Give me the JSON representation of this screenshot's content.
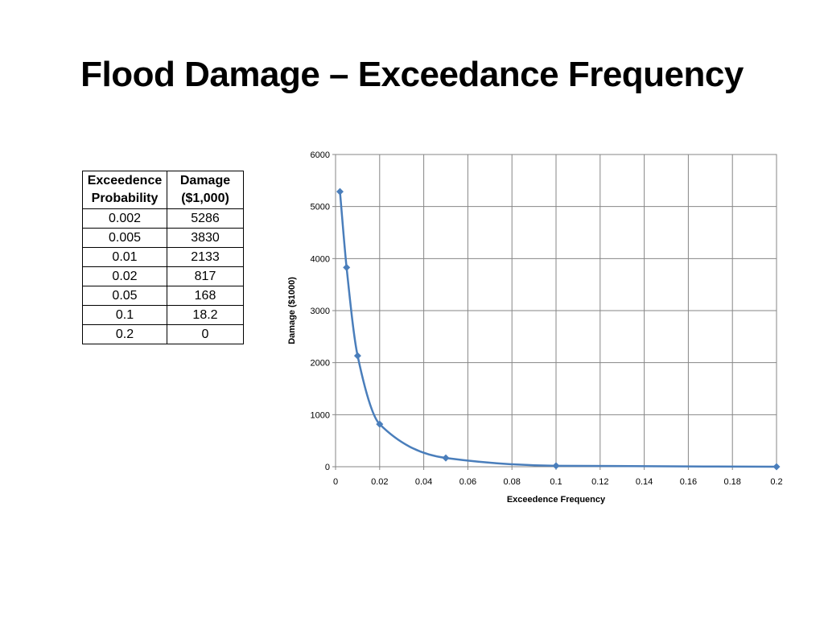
{
  "title": "Flood Damage – Exceedance Frequency",
  "table": {
    "headers": [
      "Exceedence Probability",
      "Damage ($1,000)"
    ],
    "rows": [
      [
        "0.002",
        "5286"
      ],
      [
        "0.005",
        "3830"
      ],
      [
        "0.01",
        "2133"
      ],
      [
        "0.02",
        "817"
      ],
      [
        "0.05",
        "168"
      ],
      [
        "0.1",
        "18.2"
      ],
      [
        "0.2",
        "0"
      ]
    ]
  },
  "chart_data": {
    "type": "scatter",
    "xlabel": "Exceedence Frequency",
    "ylabel": "Damage ($1000)",
    "xlim": [
      0,
      0.2
    ],
    "ylim": [
      0,
      6000
    ],
    "xticks": [
      "0",
      "0.02",
      "0.04",
      "0.06",
      "0.08",
      "0.1",
      "0.12",
      "0.14",
      "0.16",
      "0.18",
      "0.2"
    ],
    "yticks": [
      "0",
      "1000",
      "2000",
      "3000",
      "4000",
      "5000",
      "6000"
    ],
    "grid": true,
    "smooth": true,
    "color": "#4a7ebb",
    "x": [
      0.002,
      0.005,
      0.01,
      0.02,
      0.05,
      0.1,
      0.2
    ],
    "y": [
      5286,
      3830,
      2133,
      817,
      168,
      18.2,
      0
    ]
  }
}
